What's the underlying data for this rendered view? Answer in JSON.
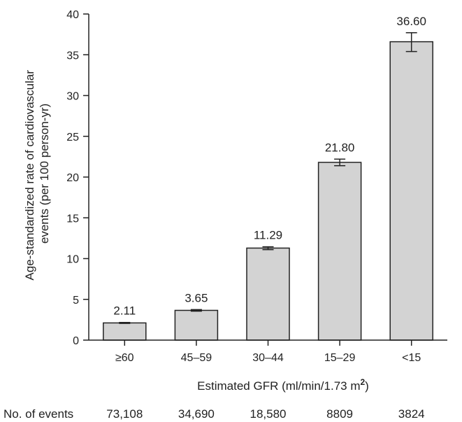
{
  "chart_data": {
    "type": "bar",
    "categories": [
      "≥60",
      "45–59",
      "30–44",
      "15–29",
      "<15"
    ],
    "values": [
      2.11,
      3.65,
      11.29,
      21.8,
      36.6
    ],
    "value_labels": [
      "2.11",
      "3.65",
      "11.29",
      "21.80",
      "36.60"
    ],
    "error_bars": [
      [
        2.05,
        2.17
      ],
      [
        3.55,
        3.75
      ],
      [
        11.1,
        11.45
      ],
      [
        21.4,
        22.2
      ],
      [
        35.4,
        37.7
      ]
    ],
    "ylabel_line1": "Age-standardized rate of cardiovascular",
    "ylabel_line2": "events (per 100 person-yr)",
    "xlabel_main": "Estimated GFR (ml/min/1.73 m",
    "xlabel_sup": "2",
    "xlabel_close": ")",
    "ylim": [
      0,
      40
    ],
    "yticks": [
      "0",
      "5",
      "10",
      "15",
      "20",
      "25",
      "30",
      "35",
      "40"
    ],
    "grid": false,
    "bar_color": "#d3d3d3",
    "bar_stroke": "#222222",
    "events_row": {
      "label": "No. of events",
      "values": [
        "73,108",
        "34,690",
        "18,580",
        "8809",
        "3824"
      ]
    }
  }
}
